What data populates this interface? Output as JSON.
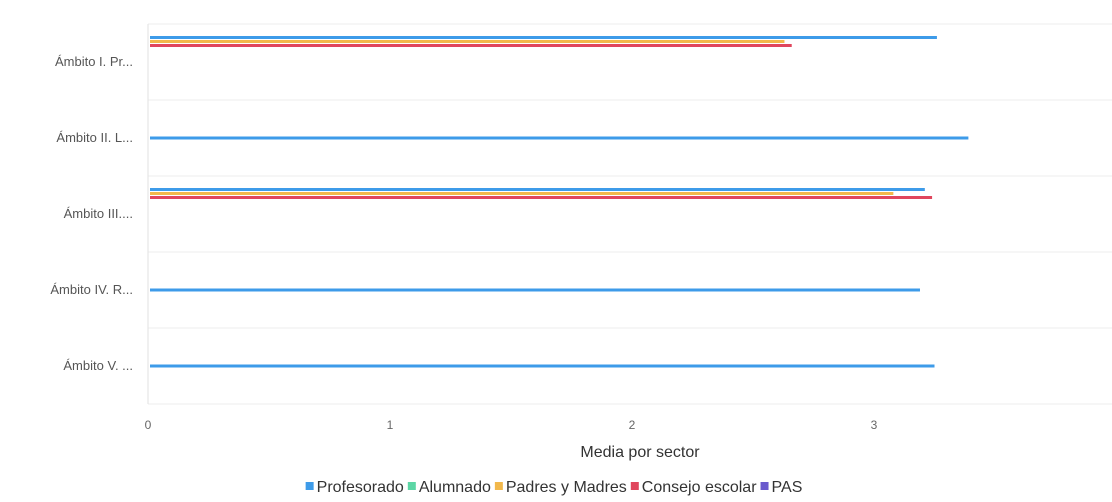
{
  "chart_data": {
    "type": "bar",
    "orientation": "horizontal",
    "categories": [
      "Ámbito I. Pr...",
      "Ámbito II. L...",
      "Ámbito III....",
      "Ámbito IV. R...",
      "Ámbito V. ..."
    ],
    "series": [
      {
        "name": "Profesorado",
        "color": "#3d9be9",
        "values": [
          3.26,
          3.39,
          3.21,
          3.19,
          3.25
        ]
      },
      {
        "name": "Alumnado",
        "color": "#5cd6a5",
        "values": [
          null,
          null,
          null,
          null,
          null
        ]
      },
      {
        "name": "Padres y Madres",
        "color": "#f2b84b",
        "values": [
          2.63,
          null,
          3.08,
          null,
          null
        ]
      },
      {
        "name": "Consejo escolar",
        "color": "#e0465d",
        "values": [
          2.66,
          null,
          3.24,
          null,
          null
        ]
      },
      {
        "name": "PAS",
        "color": "#6a5acd",
        "values": [
          null,
          null,
          null,
          null,
          null
        ]
      }
    ],
    "xlabel": "Media por sector",
    "ylabel": "",
    "xlim": [
      0,
      4
    ],
    "x_ticks": [
      "0",
      "1",
      "2",
      "3",
      "4"
    ],
    "grid": true,
    "legend_position": "bottom"
  }
}
